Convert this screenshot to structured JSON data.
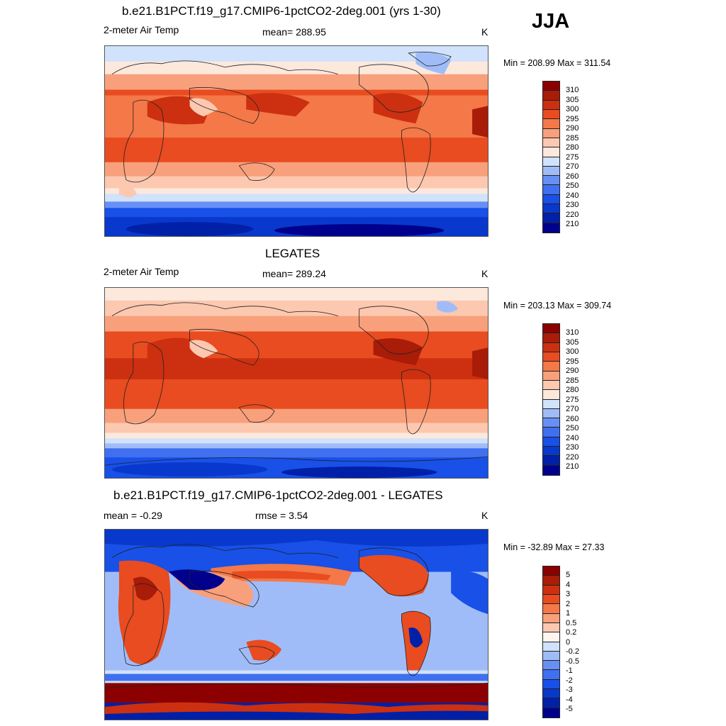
{
  "season": "JJA",
  "colors": {
    "abs_scale": [
      "#00008c",
      "#0020a8",
      "#0838cc",
      "#1850e8",
      "#4070f0",
      "#6890f4",
      "#a0bcf8",
      "#d0e2fc",
      "#fde8dc",
      "#fcc8b0",
      "#f8a07c",
      "#f47848",
      "#e84c20",
      "#cc3010",
      "#a81c08",
      "#8c0000"
    ],
    "diff_scale": [
      "#00008c",
      "#0020a8",
      "#0838cc",
      "#1850e8",
      "#4070f0",
      "#6890f4",
      "#a0bcf8",
      "#d0e2fc",
      "#fef4f0",
      "#fcc8b0",
      "#f8a07c",
      "#f47848",
      "#e84c20",
      "#cc3010",
      "#a81c08",
      "#8c0000"
    ],
    "land_outline": "#222222"
  },
  "panels": [
    {
      "title": "b.e21.B1PCT.f19_g17.CMIP6-1pctCO2-2deg.001 (yrs 1-30)",
      "left_label": "2-meter Air Temp",
      "center_label": "mean= 288.95",
      "units": "K",
      "minmax": "Min = 208.99 Max = 311.54",
      "colorbar_labels": [
        "310",
        "305",
        "300",
        "295",
        "290",
        "285",
        "280",
        "275",
        "270",
        "260",
        "250",
        "240",
        "230",
        "220",
        "210"
      ]
    },
    {
      "title": "LEGATES",
      "left_label": "2-meter Air Temp",
      "center_label": "mean= 289.24",
      "units": "K",
      "minmax": "Min = 203.13 Max = 309.74",
      "colorbar_labels": [
        "310",
        "305",
        "300",
        "295",
        "290",
        "285",
        "280",
        "275",
        "270",
        "260",
        "250",
        "240",
        "230",
        "220",
        "210"
      ]
    },
    {
      "title": "b.e21.B1PCT.f19_g17.CMIP6-1pctCO2-2deg.001 - LEGATES",
      "left_label": "mean =  -0.29",
      "center_label": "rmse =   3.54",
      "units": "K",
      "minmax": "Min = -32.89 Max =  27.33",
      "colorbar_labels": [
        "5",
        "4",
        "3",
        "2",
        "1",
        "0.5",
        "0.2",
        "0",
        "-0.2",
        "-0.5",
        "-1",
        "-2",
        "-3",
        "-4",
        "-5"
      ]
    }
  ]
}
